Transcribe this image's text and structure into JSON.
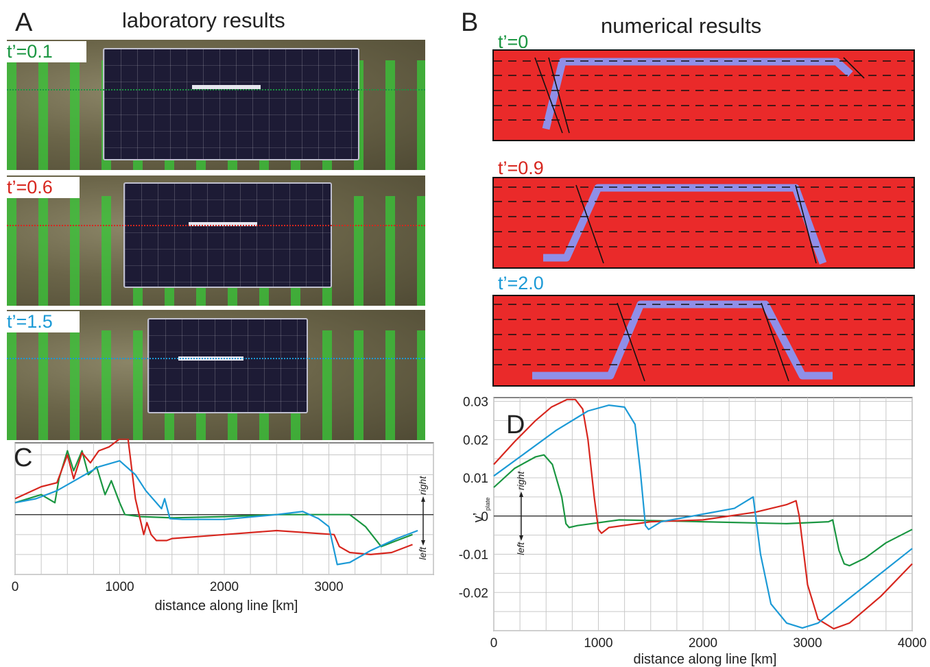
{
  "panel_a": {
    "letter": "A",
    "title": "laboratory results",
    "snapshots": [
      {
        "label": "t’=0.1",
        "color": "#1a9641"
      },
      {
        "label": "t’=0.6",
        "color": "#d7261e"
      },
      {
        "label": "t’=1.5",
        "color": "#1c9ad6"
      }
    ]
  },
  "panel_b": {
    "letter": "B",
    "title": "numerical results",
    "snapshots": [
      {
        "label": "t’=0",
        "color": "#1a9641"
      },
      {
        "label": "t’=0.9",
        "color": "#d7261e"
      },
      {
        "label": "t’=2.0",
        "color": "#1c9ad6"
      }
    ]
  },
  "colors": {
    "green": "#1a9641",
    "red": "#d7261e",
    "blue": "#1c9ad6",
    "mantle": "#ea2a2a",
    "plate": "#8f8fe8"
  },
  "chart_data": [
    {
      "panel": "C",
      "type": "line",
      "xlabel": "distance along line [km]",
      "ylabel": "",
      "xlim": [
        0,
        4000
      ],
      "ylim": [
        -0.015,
        0.018
      ],
      "xticks": [
        0,
        1000,
        2000,
        3000
      ],
      "tick_labels": [
        "0",
        "1000",
        "2000",
        "3000"
      ],
      "direction_labels": {
        "up": "right",
        "down": "left"
      },
      "grid": true,
      "series": [
        {
          "color": "#1a9641",
          "x": [
            0,
            250,
            380,
            420,
            500,
            560,
            640,
            700,
            780,
            860,
            920,
            1000,
            1050,
            1200,
            1500,
            2000,
            2500,
            3200,
            3350,
            3500,
            3650,
            3800
          ],
          "y": [
            0.003,
            0.005,
            0.003,
            0.009,
            0.016,
            0.011,
            0.016,
            0.01,
            0.012,
            0.005,
            0.0085,
            0.003,
            0.0,
            -0.0005,
            -0.0008,
            -0.0005,
            0.0,
            0.0,
            -0.003,
            -0.008,
            -0.0065,
            -0.005
          ]
        },
        {
          "color": "#d7261e",
          "x": [
            0,
            250,
            400,
            500,
            560,
            640,
            720,
            800,
            900,
            1000,
            1080,
            1150,
            1230,
            1260,
            1300,
            1350,
            1450,
            1500,
            2000,
            2500,
            3050,
            3100,
            3200,
            3400,
            3600,
            3800
          ],
          "y": [
            0.004,
            0.007,
            0.008,
            0.015,
            0.009,
            0.0155,
            0.013,
            0.016,
            0.017,
            0.019,
            0.019,
            0.004,
            -0.005,
            -0.002,
            -0.005,
            -0.0065,
            -0.0065,
            -0.006,
            -0.005,
            -0.004,
            -0.005,
            -0.008,
            -0.0095,
            -0.01,
            -0.0095,
            -0.0075
          ]
        },
        {
          "color": "#1c9ad6",
          "x": [
            0,
            200,
            400,
            600,
            800,
            1000,
            1150,
            1250,
            1400,
            1430,
            1480,
            1600,
            2000,
            2500,
            2750,
            2900,
            3000,
            3080,
            3200,
            3400,
            3650,
            3850
          ],
          "y": [
            0.003,
            0.004,
            0.006,
            0.009,
            0.012,
            0.0135,
            0.01,
            0.006,
            0.0015,
            0.004,
            -0.001,
            -0.0012,
            -0.0012,
            0.0,
            0.0008,
            -0.001,
            -0.003,
            -0.0125,
            -0.012,
            -0.009,
            -0.006,
            -0.004
          ]
        }
      ]
    },
    {
      "panel": "D",
      "type": "line",
      "xlabel": "distance along line [km]",
      "ylabel": "v’",
      "ylabel_sub": "plate",
      "xlim": [
        0,
        4000
      ],
      "ylim": [
        -0.03,
        0.031
      ],
      "xticks": [
        0,
        1000,
        2000,
        3000,
        4000
      ],
      "x_tick_labels": [
        "0",
        "1000",
        "2000",
        "3000",
        "4000"
      ],
      "yticks": [
        0.03,
        0.02,
        0.01,
        0,
        -0.01,
        -0.02
      ],
      "y_tick_labels": [
        "0.03",
        "0.02",
        "0.01",
        "0",
        "-0.01",
        "-0.02"
      ],
      "direction_labels": {
        "up": "right",
        "down": "left"
      },
      "grid": true,
      "series": [
        {
          "color": "#1a9641",
          "x": [
            0,
            200,
            400,
            480,
            560,
            650,
            690,
            720,
            800,
            1200,
            2000,
            2800,
            3200,
            3240,
            3300,
            3350,
            3400,
            3550,
            3750,
            4000
          ],
          "y": [
            0.0075,
            0.0125,
            0.0155,
            0.016,
            0.0135,
            0.005,
            -0.002,
            -0.003,
            -0.0025,
            -0.001,
            -0.0015,
            -0.002,
            -0.0015,
            -0.001,
            -0.009,
            -0.0125,
            -0.013,
            -0.011,
            -0.007,
            -0.0035
          ]
        },
        {
          "color": "#d7261e",
          "x": [
            0,
            200,
            400,
            550,
            700,
            780,
            850,
            900,
            960,
            1000,
            1030,
            1100,
            1500,
            2000,
            2500,
            2800,
            2890,
            2920,
            3000,
            3100,
            3250,
            3400,
            3700,
            4000
          ],
          "y": [
            0.0135,
            0.0195,
            0.025,
            0.0285,
            0.0305,
            0.0305,
            0.028,
            0.02,
            0.005,
            -0.0035,
            -0.0045,
            -0.003,
            -0.0015,
            -0.001,
            0.001,
            0.003,
            0.004,
            0.0,
            -0.018,
            -0.027,
            -0.0295,
            -0.028,
            -0.021,
            -0.0125
          ]
        },
        {
          "color": "#1c9ad6",
          "x": [
            0,
            300,
            600,
            900,
            1100,
            1250,
            1350,
            1400,
            1450,
            1480,
            1600,
            2000,
            2300,
            2450,
            2480,
            2550,
            2650,
            2800,
            2950,
            3100,
            3400,
            3700,
            4000
          ],
          "y": [
            0.0105,
            0.0165,
            0.0225,
            0.0275,
            0.029,
            0.0285,
            0.024,
            0.012,
            -0.0025,
            -0.0035,
            -0.0015,
            0.0005,
            0.002,
            0.0045,
            0.005,
            -0.01,
            -0.023,
            -0.028,
            -0.0293,
            -0.028,
            -0.0215,
            -0.015,
            -0.0085
          ]
        }
      ]
    }
  ]
}
